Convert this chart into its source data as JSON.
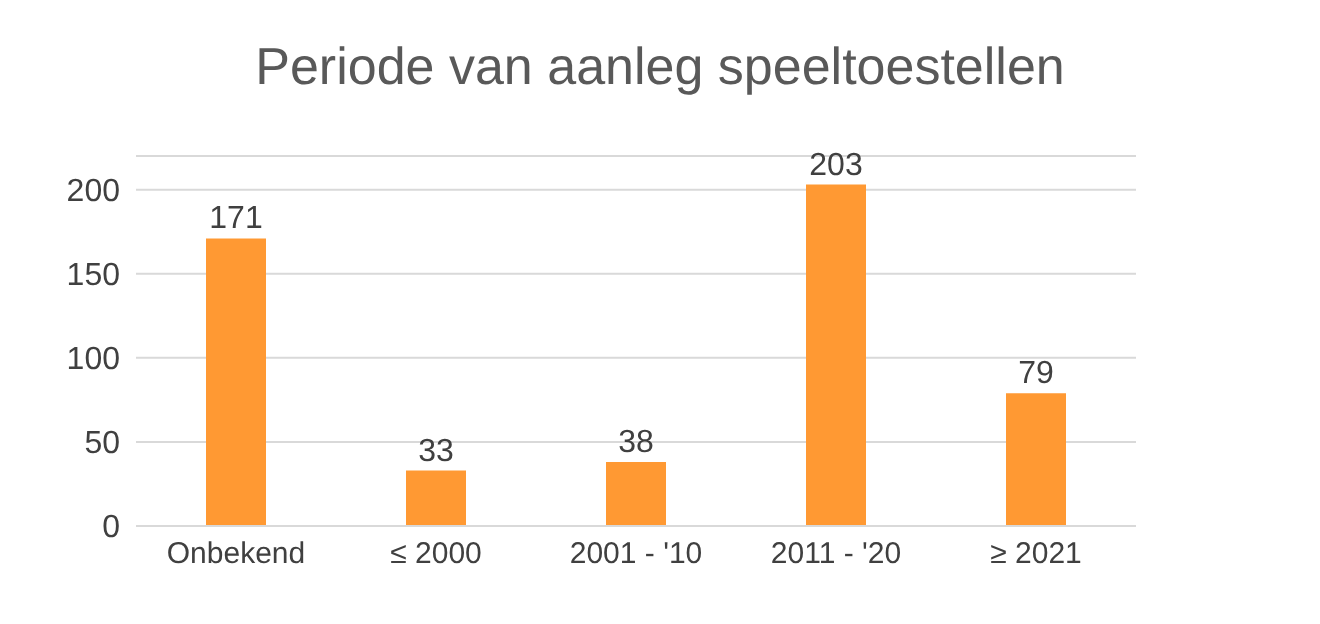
{
  "chart_data": {
    "type": "bar",
    "title": "Periode van aanleg speeltoestellen",
    "categories": [
      "Onbekend",
      "≤ 2000",
      "2001 - '10",
      "2011 - '20",
      "≥ 2021"
    ],
    "values": [
      171,
      33,
      38,
      203,
      79
    ],
    "color": "#ff9933",
    "ylim": [
      0,
      220
    ],
    "yticks": [
      0,
      50,
      100,
      150,
      200
    ],
    "grid": "y",
    "data_labels": true
  }
}
